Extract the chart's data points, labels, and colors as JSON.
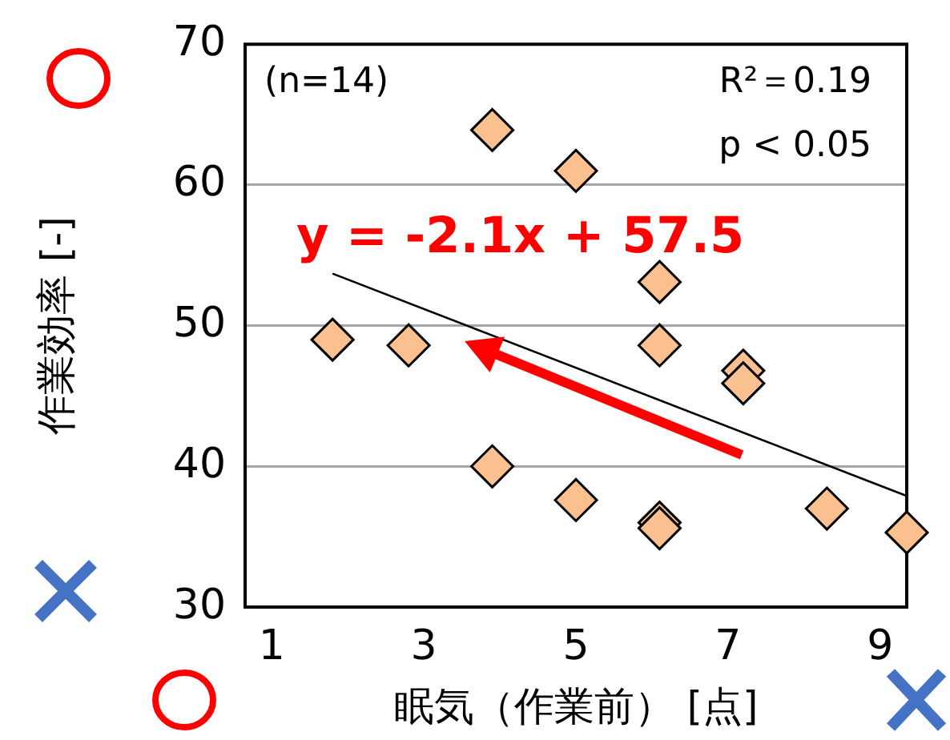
{
  "chart_data": {
    "type": "scatter",
    "xlabel": "眠気（作業前） [点]",
    "ylabel": "作業効率 [-]",
    "xlim": [
      0.65,
      9.35
    ],
    "xticks": [
      1,
      3,
      5,
      7,
      9
    ],
    "ylim": [
      30,
      70
    ],
    "yticks": [
      30,
      40,
      50,
      60,
      70
    ],
    "grid": "y",
    "legend": false,
    "annotations": [
      "(n=14)",
      "R²＝0.19",
      "p < 0.05",
      "y = -2.1x + 57.5"
    ],
    "series": [
      {
        "color": "#fac090",
        "marker": "diamond",
        "x": [
          1.8,
          2.8,
          3.9,
          5.0,
          3.9,
          5.0,
          6.1,
          6.1,
          6.1,
          6.1,
          7.2,
          7.2,
          8.3,
          9.35
        ],
        "values": [
          49,
          48.6,
          63.9,
          61,
          40,
          37.6,
          53.1,
          48.6,
          36,
          35.6,
          46.8,
          45.9,
          37,
          35.3
        ]
      },
      {
        "type": "line",
        "color": "#000000",
        "marker": "none",
        "x": [
          1.8,
          9.35
        ],
        "values": [
          53.7,
          37.9
        ]
      }
    ]
  }
}
